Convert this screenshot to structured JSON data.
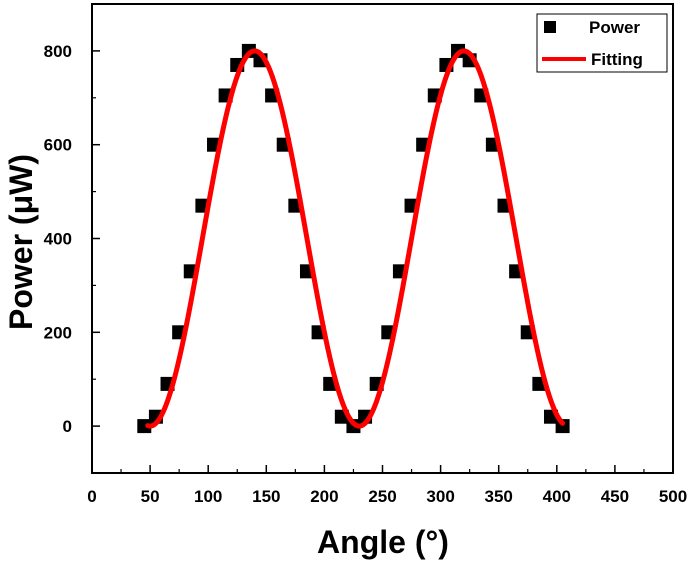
{
  "chart_data": {
    "type": "scatter",
    "xlabel": "Angle (°)",
    "ylabel": "Power (μW)",
    "xlim": [
      0,
      500
    ],
    "ylim": [
      -100,
      900
    ],
    "xticks": [
      0,
      50,
      100,
      150,
      200,
      250,
      300,
      350,
      400,
      450,
      500
    ],
    "yticks": [
      0,
      200,
      400,
      600,
      800
    ],
    "grid": false,
    "legend_position": "top-right",
    "series": [
      {
        "name": "Power",
        "kind": "scatter",
        "marker": "square",
        "color": "#000000",
        "x": [
          45,
          55,
          65,
          75,
          85,
          95,
          105,
          115,
          125,
          135,
          145,
          155,
          165,
          175,
          185,
          195,
          205,
          215,
          225,
          235,
          245,
          255,
          265,
          275,
          285,
          295,
          305,
          315,
          325,
          335,
          345,
          355,
          365,
          375,
          385,
          395,
          405
        ],
        "y": [
          0,
          20,
          90,
          200,
          330,
          470,
          600,
          705,
          770,
          800,
          780,
          705,
          600,
          470,
          330,
          200,
          90,
          20,
          0,
          20,
          90,
          200,
          330,
          470,
          600,
          705,
          770,
          800,
          780,
          705,
          600,
          470,
          330,
          200,
          90,
          20,
          0
        ]
      },
      {
        "name": "Fitting",
        "kind": "line",
        "color": "#ff0000",
        "model": {
          "amplitude": 400,
          "offset": 400,
          "period": 180,
          "peak_x": 140,
          "x_range": [
            48,
            405
          ]
        }
      }
    ]
  }
}
